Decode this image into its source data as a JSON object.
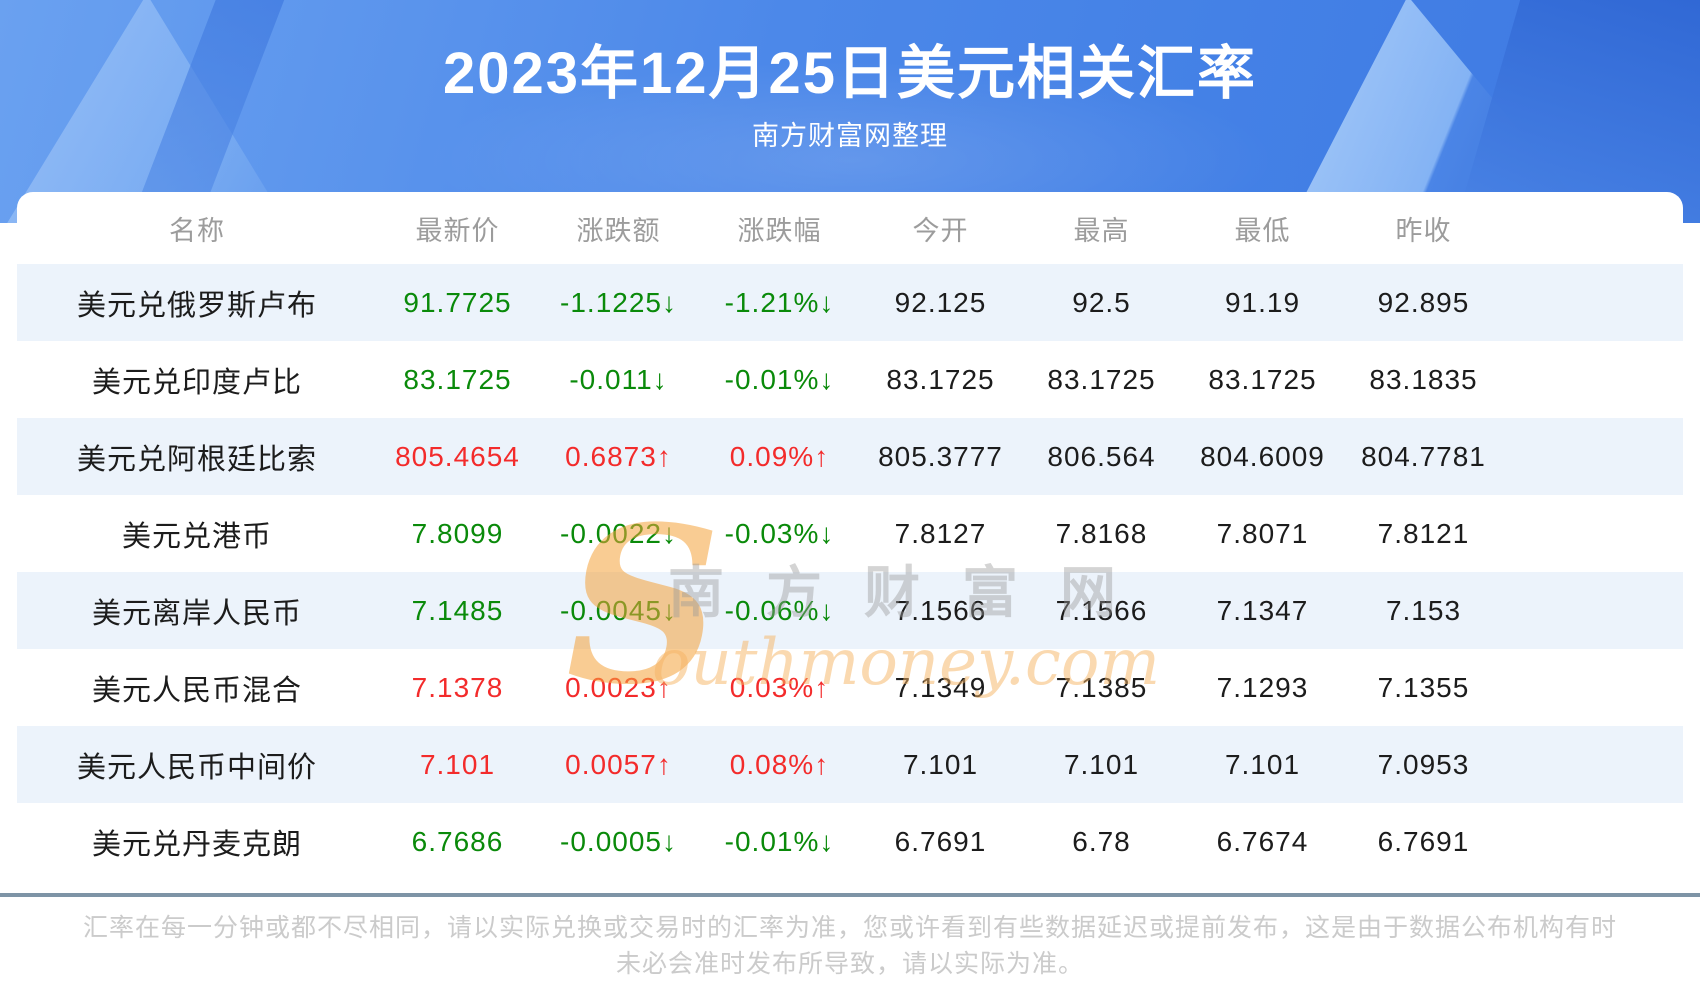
{
  "header": {
    "title": "2023年12月25日美元相关汇率",
    "subtitle": "南方财富网整理"
  },
  "table": {
    "columns": [
      "名称",
      "最新价",
      "涨跌额",
      "涨跌幅",
      "今开",
      "最高",
      "最低",
      "昨收"
    ],
    "rows": [
      {
        "name": "美元兑俄罗斯卢布",
        "latest": "91.7725",
        "change": "-1.1225↓",
        "change_pct": "-1.21%↓",
        "open": "92.125",
        "high": "92.5",
        "low": "91.19",
        "prev_close": "92.895",
        "trend": "down"
      },
      {
        "name": "美元兑印度卢比",
        "latest": "83.1725",
        "change": "-0.011↓",
        "change_pct": "-0.01%↓",
        "open": "83.1725",
        "high": "83.1725",
        "low": "83.1725",
        "prev_close": "83.1835",
        "trend": "down"
      },
      {
        "name": "美元兑阿根廷比索",
        "latest": "805.4654",
        "change": "0.6873↑",
        "change_pct": "0.09%↑",
        "open": "805.3777",
        "high": "806.564",
        "low": "804.6009",
        "prev_close": "804.7781",
        "trend": "up"
      },
      {
        "name": "美元兑港币",
        "latest": "7.8099",
        "change": "-0.0022↓",
        "change_pct": "-0.03%↓",
        "open": "7.8127",
        "high": "7.8168",
        "low": "7.8071",
        "prev_close": "7.8121",
        "trend": "down"
      },
      {
        "name": "美元离岸人民币",
        "latest": "7.1485",
        "change": "-0.0045↓",
        "change_pct": "-0.06%↓",
        "open": "7.1566",
        "high": "7.1566",
        "low": "7.1347",
        "prev_close": "7.153",
        "trend": "down"
      },
      {
        "name": "美元人民币混合",
        "latest": "7.1378",
        "change": "0.0023↑",
        "change_pct": "0.03%↑",
        "open": "7.1349",
        "high": "7.1385",
        "low": "7.1293",
        "prev_close": "7.1355",
        "trend": "up"
      },
      {
        "name": "美元人民币中间价",
        "latest": "7.101",
        "change": "0.0057↑",
        "change_pct": "0.08%↑",
        "open": "7.101",
        "high": "7.101",
        "low": "7.101",
        "prev_close": "7.0953",
        "trend": "up"
      },
      {
        "name": "美元兑丹麦克朗",
        "latest": "6.7686",
        "change": "-0.0005↓",
        "change_pct": "-0.01%↓",
        "open": "6.7691",
        "high": "6.78",
        "low": "6.7674",
        "prev_close": "6.7691",
        "trend": "down"
      }
    ]
  },
  "watermark": {
    "s": "S",
    "cn": "南方财富网",
    "en": "outhmoney.com"
  },
  "footer": {
    "disclaimer": "汇率在每一分钟或都不尽相同，请以实际兑换或交易时的汇率为准，您或许看到有些数据延迟或提前发布，这是由于数据公布机构有时未必会准时发布所导致，请以实际为准。"
  },
  "colors": {
    "up_red": "#f32b2b",
    "down_green": "#0a8a0a",
    "row_stripe": "#ecf3fb",
    "banner_blue": "#4c88e9",
    "divider": "#7e94a6",
    "header_text_gray": "#9c9c9c",
    "footer_text_gray": "#cbcbcb"
  }
}
